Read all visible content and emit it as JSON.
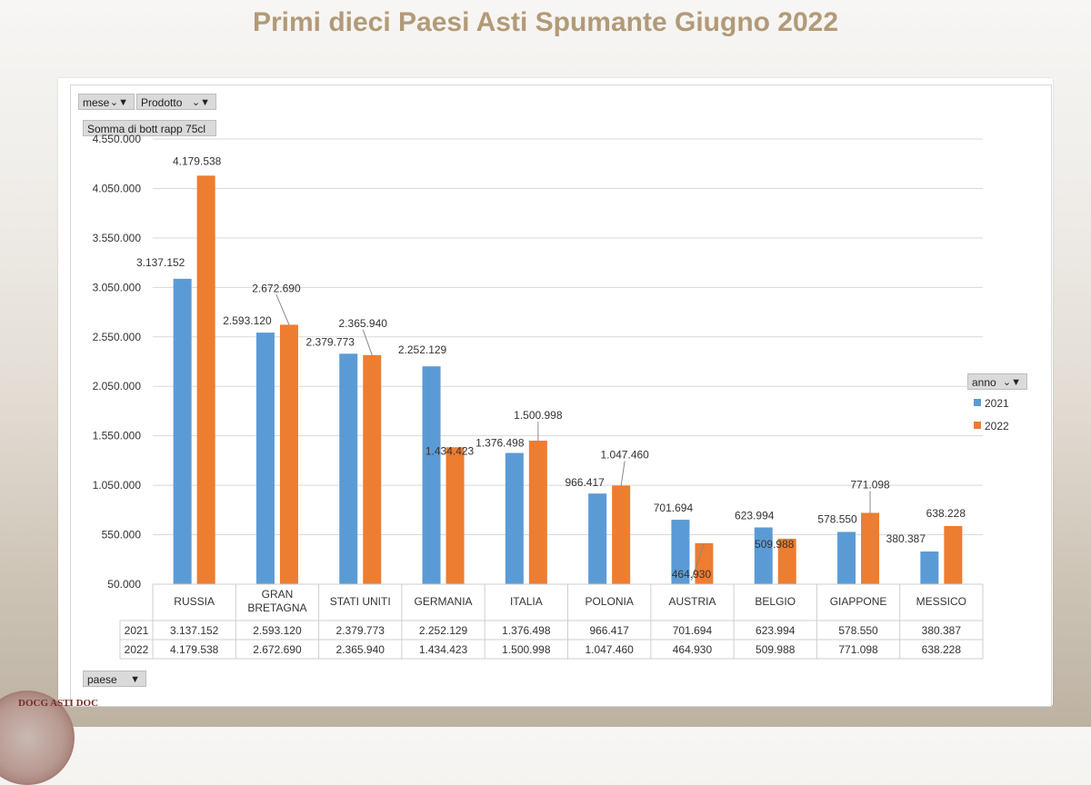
{
  "title": "Primi dieci Paesi Asti Spumante Giugno 2022",
  "filters": {
    "mese": "mese",
    "prodotto": "Prodotto",
    "somma": "Somma di bott rapp 75cl",
    "paese": "paese",
    "anno": "anno"
  },
  "logo_text": "DOCG ASTI DOC",
  "colors": {
    "series_2021": "#5b9bd5",
    "series_2022": "#ed7d31",
    "title": "#b29a78"
  },
  "chart_data": {
    "type": "bar",
    "title": "Primi dieci Paesi Asti Spumante Giugno 2022",
    "ylabel": "Somma di bott rapp 75cl",
    "ylim": [
      50000,
      4550000
    ],
    "yticks": [
      "4.550.000",
      "4.050.000",
      "3.550.000",
      "3.050.000",
      "2.550.000",
      "2.050.000",
      "1.550.000",
      "1.050.000",
      "550.000",
      "50.000"
    ],
    "ytick_values": [
      4550000,
      4050000,
      3550000,
      3050000,
      2550000,
      2050000,
      1550000,
      1050000,
      550000,
      50000
    ],
    "categories": [
      "RUSSIA",
      "GRAN BRETAGNA",
      "STATI UNITI",
      "GERMANIA",
      "ITALIA",
      "POLONIA",
      "AUSTRIA",
      "BELGIO",
      "GIAPPONE",
      "MESSICO"
    ],
    "series": [
      {
        "name": "2021",
        "values": [
          3137152,
          2593120,
          2379773,
          2252129,
          1376498,
          966417,
          701694,
          623994,
          578550,
          380387
        ],
        "labels": [
          "3.137.152",
          "2.593.120",
          "2.379.773",
          "2.252.129",
          "1.376.498",
          "966.417",
          "701.694",
          "623.994",
          "578.550",
          "380.387"
        ]
      },
      {
        "name": "2022",
        "values": [
          4179538,
          2672690,
          2365940,
          1434423,
          1500998,
          1047460,
          464930,
          509988,
          771098,
          638228
        ],
        "labels": [
          "4.179.538",
          "2.672.690",
          "2.365.940",
          "1.434.423",
          "1.500.998",
          "1.047.460",
          "464.930",
          "509.988",
          "771.098",
          "638.228"
        ]
      }
    ],
    "legend": {
      "title": "anno",
      "position": "right",
      "entries": [
        "2021",
        "2022"
      ]
    },
    "grid": true,
    "data_table": true
  }
}
